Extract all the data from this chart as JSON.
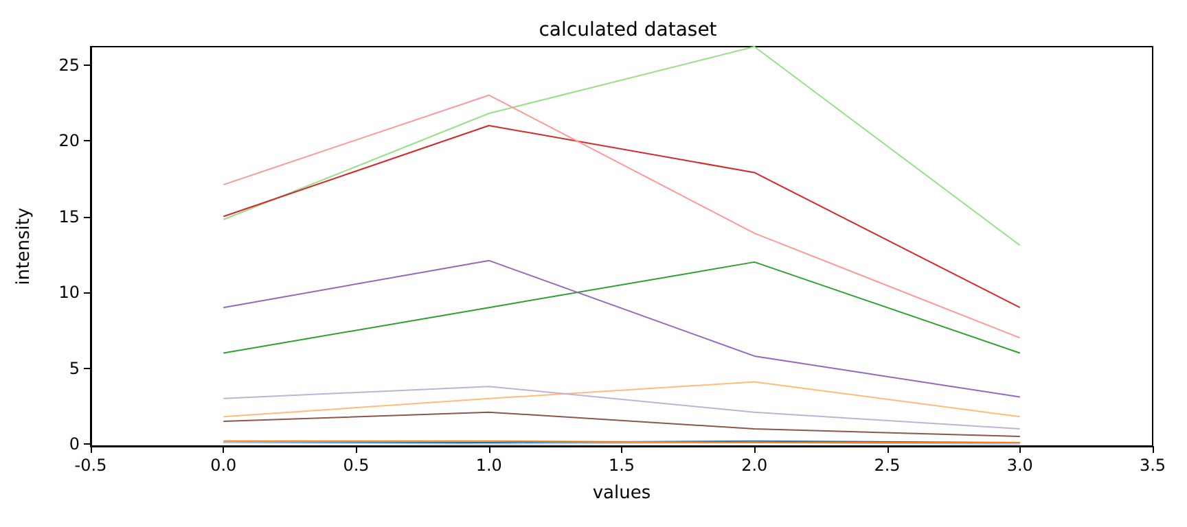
{
  "chart_data": {
    "type": "line",
    "title": "calculated dataset",
    "xlabel": "values",
    "ylabel": "intensity",
    "x": [
      0,
      1,
      2,
      3
    ],
    "xlim": [
      -0.5,
      3.5
    ],
    "xticks": [
      -0.5,
      {
        "value": 0,
        "label": "0.0"
      },
      0.5,
      {
        "value": 1,
        "label": "1.0"
      },
      1.5,
      {
        "value": 2,
        "label": "2.0"
      },
      2.5,
      {
        "value": 3,
        "label": "3.0"
      },
      3.5
    ],
    "ylim": [
      -0.13,
      26.2
    ],
    "yticks": [
      0,
      5,
      10,
      15,
      20,
      25
    ],
    "grid": false,
    "marker": "none",
    "line_style": "solid",
    "series": [
      {
        "color": "#1f77b4",
        "values": [
          0.1,
          0.1,
          0.2,
          0.1
        ]
      },
      {
        "color": "#aec7e8",
        "values": [
          0.1,
          0,
          0.1,
          0
        ]
      },
      {
        "color": "#ff7f0e",
        "values": [
          0.2,
          0.2,
          0.1,
          0.1
        ]
      },
      {
        "color": "#ffbb78",
        "values": [
          1.8,
          3.0,
          4.1,
          1.8
        ]
      },
      {
        "color": "#2ca02c",
        "values": [
          6.0,
          9.0,
          12.0,
          6.0
        ]
      },
      {
        "color": "#98df8a",
        "values": [
          14.8,
          21.8,
          26.2,
          13.1
        ]
      },
      {
        "color": "#d62728",
        "values": [
          15.0,
          21.0,
          17.9,
          9.0
        ]
      },
      {
        "color": "#ff9896",
        "values": [
          17.1,
          23.0,
          13.9,
          7.0
        ]
      },
      {
        "color": "#9467bd",
        "values": [
          9.0,
          12.1,
          5.8,
          3.1
        ]
      },
      {
        "color": "#c5b0d5",
        "values": [
          3.0,
          3.8,
          2.1,
          1.0
        ]
      },
      {
        "color": "#8c564b",
        "values": [
          1.5,
          2.1,
          1.0,
          0.5
        ]
      }
    ]
  }
}
